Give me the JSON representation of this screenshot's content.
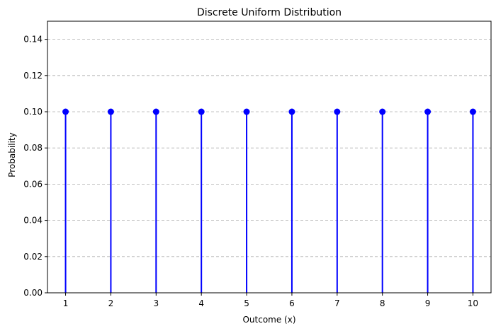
{
  "chart_data": {
    "type": "stem",
    "title": "Discrete Uniform Distribution",
    "xlabel": "Outcome (x)",
    "ylabel": "Probability",
    "x": [
      1,
      2,
      3,
      4,
      5,
      6,
      7,
      8,
      9,
      10
    ],
    "y": [
      0.1,
      0.1,
      0.1,
      0.1,
      0.1,
      0.1,
      0.1,
      0.1,
      0.1,
      0.1
    ],
    "xlim": [
      0.6,
      10.4
    ],
    "ylim": [
      0,
      0.15
    ],
    "xticks": [
      1,
      2,
      3,
      4,
      5,
      6,
      7,
      8,
      9,
      10
    ],
    "xtick_labels": [
      "1",
      "2",
      "3",
      "4",
      "5",
      "6",
      "7",
      "8",
      "9",
      "10"
    ],
    "yticks": [
      0,
      0.02,
      0.04,
      0.06,
      0.08,
      0.1,
      0.12,
      0.14
    ],
    "ytick_labels": [
      "0.00",
      "0.02",
      "0.04",
      "0.06",
      "0.08",
      "0.10",
      "0.12",
      "0.14"
    ],
    "grid": "y-dashed",
    "color": "#0000ff"
  }
}
